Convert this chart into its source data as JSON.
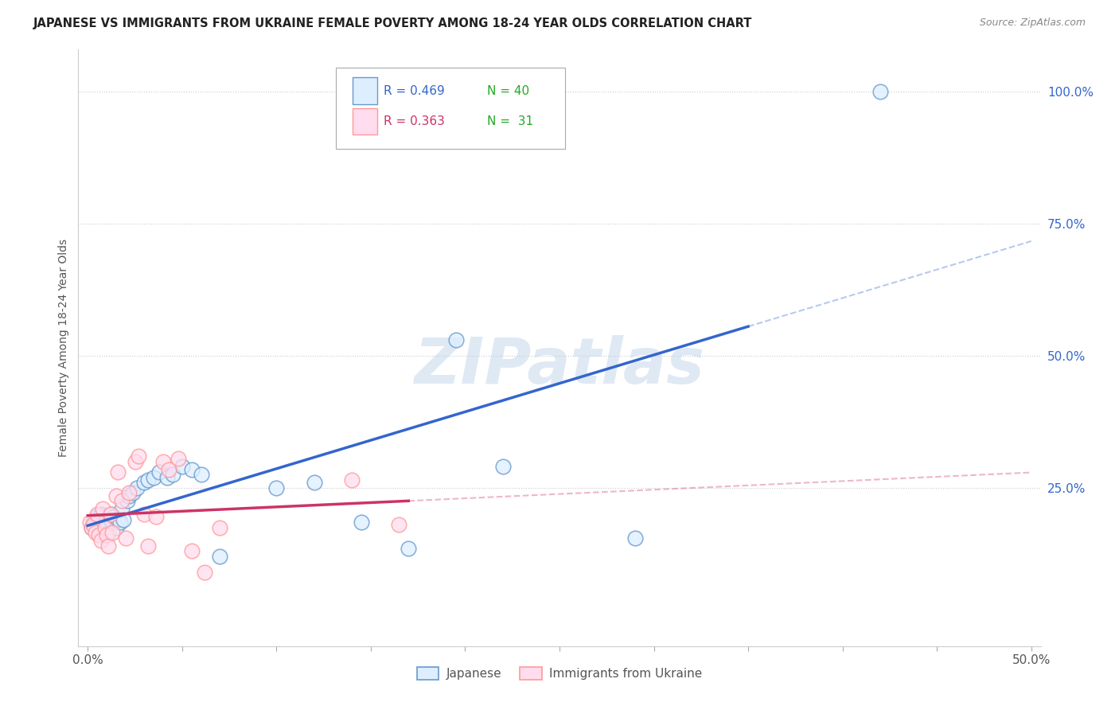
{
  "title": "JAPANESE VS IMMIGRANTS FROM UKRAINE FEMALE POVERTY AMONG 18-24 YEAR OLDS CORRELATION CHART",
  "source": "Source: ZipAtlas.com",
  "ylabel": "Female Poverty Among 18-24 Year Olds",
  "xlim": [
    -0.005,
    0.505
  ],
  "ylim": [
    -0.05,
    1.08
  ],
  "ytick_positions": [
    0.25,
    0.5,
    0.75,
    1.0
  ],
  "ytick_labels": [
    "25.0%",
    "50.0%",
    "75.0%",
    "100.0%"
  ],
  "legend_r1": "R = 0.469",
  "legend_n1": "N = 40",
  "legend_r2": "R = 0.363",
  "legend_n2": "N =  31",
  "series1_color": "#6699cc",
  "series2_color": "#ff9999",
  "line1_color": "#3366cc",
  "line2_color": "#cc3366",
  "watermark": "ZIPatlas",
  "japanese_x": [
    0.002,
    0.003,
    0.004,
    0.005,
    0.006,
    0.007,
    0.008,
    0.009,
    0.01,
    0.011,
    0.012,
    0.013,
    0.014,
    0.015,
    0.016,
    0.017,
    0.018,
    0.019,
    0.021,
    0.022,
    0.024,
    0.026,
    0.03,
    0.032,
    0.035,
    0.038,
    0.042,
    0.045,
    0.05,
    0.055,
    0.06,
    0.07,
    0.1,
    0.12,
    0.145,
    0.17,
    0.195,
    0.22,
    0.29,
    0.42
  ],
  "japanese_y": [
    0.175,
    0.185,
    0.19,
    0.195,
    0.18,
    0.2,
    0.175,
    0.185,
    0.195,
    0.165,
    0.2,
    0.185,
    0.195,
    0.175,
    0.19,
    0.185,
    0.21,
    0.19,
    0.225,
    0.235,
    0.24,
    0.25,
    0.26,
    0.265,
    0.27,
    0.28,
    0.27,
    0.275,
    0.29,
    0.285,
    0.275,
    0.12,
    0.25,
    0.26,
    0.185,
    0.135,
    0.53,
    0.29,
    0.155,
    1.0
  ],
  "ukraine_x": [
    0.001,
    0.002,
    0.003,
    0.004,
    0.005,
    0.006,
    0.007,
    0.008,
    0.009,
    0.01,
    0.011,
    0.012,
    0.013,
    0.015,
    0.016,
    0.018,
    0.02,
    0.022,
    0.025,
    0.027,
    0.03,
    0.032,
    0.036,
    0.04,
    0.043,
    0.048,
    0.055,
    0.062,
    0.07,
    0.14,
    0.165
  ],
  "ukraine_y": [
    0.185,
    0.175,
    0.18,
    0.165,
    0.2,
    0.16,
    0.15,
    0.21,
    0.175,
    0.16,
    0.14,
    0.2,
    0.165,
    0.235,
    0.28,
    0.225,
    0.155,
    0.24,
    0.3,
    0.31,
    0.2,
    0.14,
    0.195,
    0.3,
    0.285,
    0.305,
    0.13,
    0.09,
    0.175,
    0.265,
    0.18
  ]
}
